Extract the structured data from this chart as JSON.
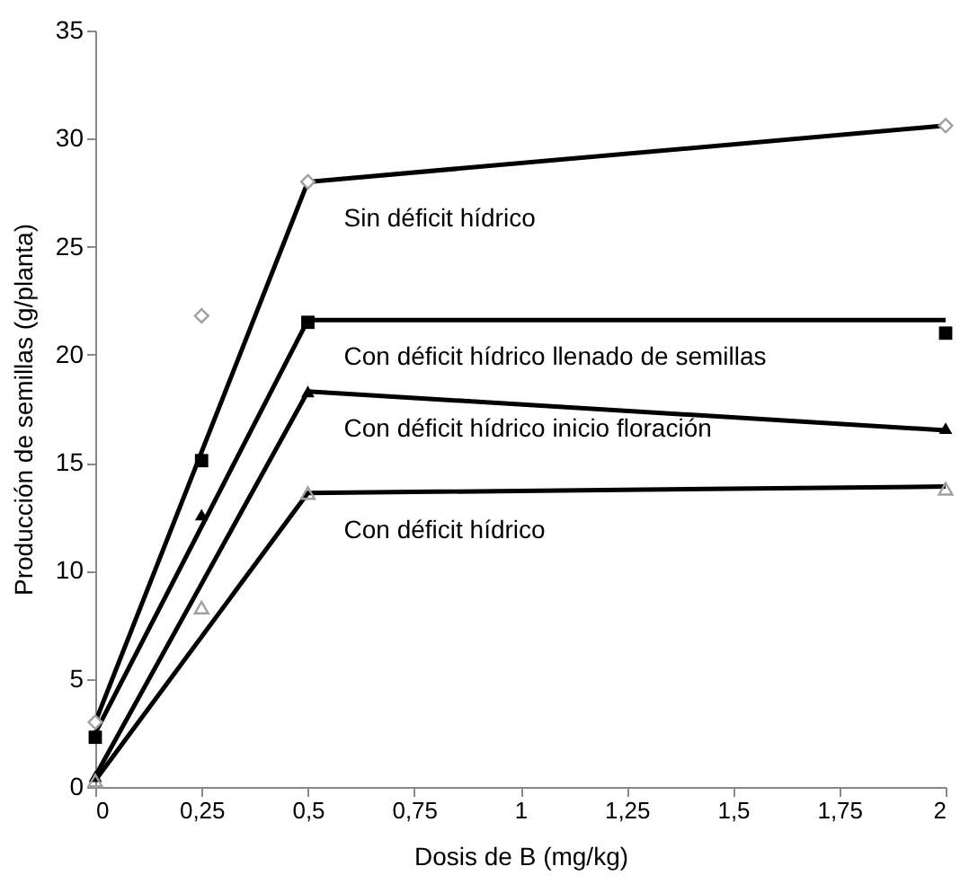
{
  "chart_data": {
    "type": "scatter",
    "xlabel": "Dosis de B (mg/kg)",
    "ylabel": "Producción de semillas (g/planta)",
    "xlim": [
      0,
      2
    ],
    "xticks": [
      0,
      {
        "value": 0.25,
        "label": "0,25"
      },
      {
        "value": 0.5,
        "label": "0,5"
      },
      {
        "value": 0.75,
        "label": "0,75"
      },
      1,
      {
        "value": 1.25,
        "label": "1,25"
      },
      {
        "value": 1.5,
        "label": "1,5"
      },
      {
        "value": 1.75,
        "label": "1,75"
      },
      2
    ],
    "ylim": [
      0,
      35
    ],
    "yticks": [
      0,
      5,
      10,
      15,
      20,
      25,
      30,
      35
    ],
    "grid": false,
    "series": [
      {
        "type": "line",
        "name": "Sin déficit hídrico",
        "color": "#000000",
        "x": [
          0,
          0.5,
          2
        ],
        "values": [
          3,
          28,
          30.6
        ]
      },
      {
        "type": "line",
        "name": "Con déficit hídrico llenado de semillas",
        "color": "#000000",
        "x": [
          0,
          0.5,
          2
        ],
        "values": [
          2.5,
          21.6,
          21.6
        ]
      },
      {
        "type": "line",
        "name": "Con déficit hídrico inicio floración",
        "color": "#000000",
        "x": [
          0,
          0.5,
          2
        ],
        "values": [
          0.5,
          18.3,
          16.5
        ]
      },
      {
        "type": "line",
        "name": "Con déficit hídrico",
        "color": "#000000",
        "x": [
          0,
          0.5,
          2
        ],
        "values": [
          0.3,
          13.6,
          13.9
        ]
      },
      {
        "marker": "diamond",
        "color": "#a0a0a0",
        "x": [
          0,
          0.25,
          0.5,
          2
        ],
        "values": [
          3,
          21.8,
          28,
          30.6
        ]
      },
      {
        "marker": "square",
        "color": "#000000",
        "x": [
          0,
          0.25,
          0.5,
          2
        ],
        "values": [
          2.3,
          15.1,
          21.5,
          21
        ]
      },
      {
        "marker": "triangle",
        "color": "#000000",
        "x": [
          0,
          0.25,
          0.5,
          2
        ],
        "values": [
          0.5,
          12.6,
          18.3,
          16.6
        ]
      },
      {
        "marker": "triangle",
        "color": "#a0a0a0",
        "x": [
          0,
          0.25,
          0.5,
          2
        ],
        "values": [
          0.3,
          8.3,
          13.6,
          13.8
        ]
      }
    ]
  }
}
